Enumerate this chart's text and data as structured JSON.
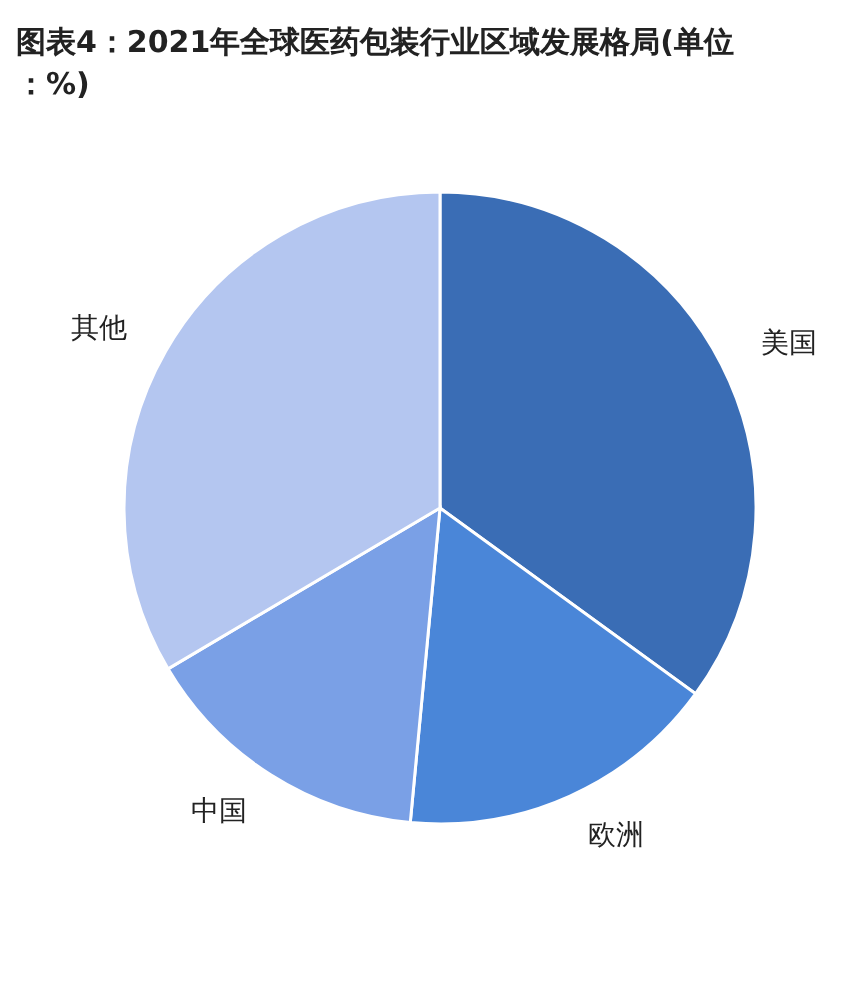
{
  "chart_data": {
    "type": "pie",
    "title": "图表4：2021年全球医药包装行业区域发展格局(单位：%)",
    "categories": [
      "美国",
      "欧洲",
      "中国",
      "其他"
    ],
    "values": [
      35,
      16.5,
      15,
      33.5
    ],
    "colors": [
      "#3a6db5",
      "#4a86d8",
      "#7aa0e6",
      "#b4c6f0"
    ],
    "legend": false
  }
}
